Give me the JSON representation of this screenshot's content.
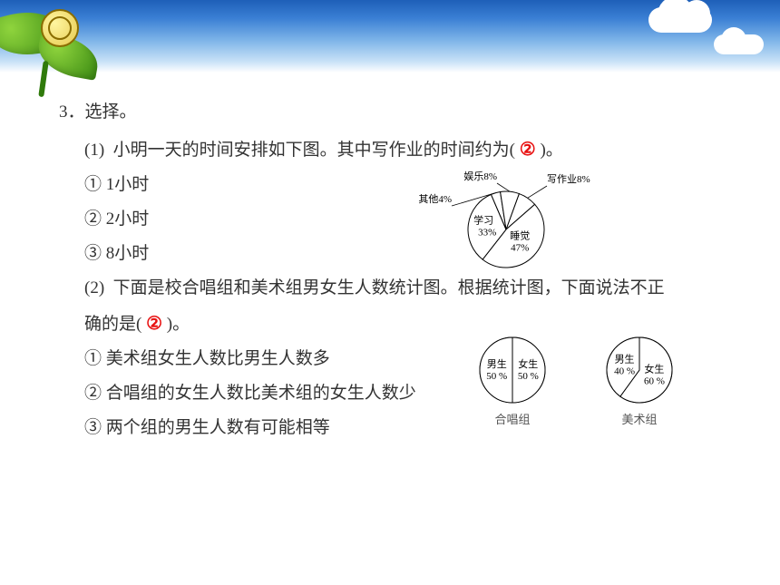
{
  "banner": {
    "sky_gradient": [
      "#1e5fb8",
      "#3a7fd4",
      "#7cb3e8",
      "#c9e2f7",
      "#ffffff"
    ],
    "leaf_colors": [
      "#8fd43d",
      "#3a8a12"
    ],
    "snail_colors": [
      "#fff6a0",
      "#e6c94f",
      "#8a6d00"
    ]
  },
  "question": {
    "number": "3．",
    "stem": "选择。",
    "answer_color": "#e81212",
    "text_color": "#333333",
    "font_size_pt": 14,
    "parts": [
      {
        "id": "(1)",
        "text": "小明一天的时间安排如下图。其中写作业的时间约为(",
        "text_after": ")。",
        "answer": "②",
        "options": [
          "①  1小时",
          "②  2小时",
          "③  8小时"
        ]
      },
      {
        "id": "(2)",
        "text_line1": "下面是校合唱组和美术组男女生人数统计图。根据统计图，下面说法不正",
        "text_line2_prefix": "确的是(",
        "text_line2_suffix": ")。",
        "answer": "②",
        "options": [
          "①  美术组女生人数比男生人数多",
          "②  合唱组的女生人数比美术组的女生人数少",
          "③  两个组的男生人数有可能相等"
        ]
      }
    ]
  },
  "figure1": {
    "type": "pie",
    "radius": 42,
    "stroke": "#000000",
    "fill": "#ffffff",
    "label_fontsize": 11,
    "slices": [
      {
        "label": "睡觉",
        "value": 47,
        "label_text": "睡觉",
        "pct_text": "47%"
      },
      {
        "label": "学习",
        "value": 33,
        "label_text": "学习",
        "pct_text": "33%"
      },
      {
        "label": "其他",
        "value": 4,
        "label_text": "其他4%",
        "pct_text": ""
      },
      {
        "label": "娱乐",
        "value": 8,
        "label_text": "娱乐8%",
        "pct_text": ""
      },
      {
        "label": "写作业",
        "value": 8,
        "label_text": "写作业8%",
        "pct_text": ""
      }
    ]
  },
  "figure2": {
    "type": "pie_pair",
    "radius": 36,
    "stroke": "#000000",
    "fill": "#ffffff",
    "label_fontsize": 11,
    "pies": [
      {
        "caption": "合唱组",
        "slices": [
          {
            "label": "男生",
            "pct": 50,
            "text1": "男生",
            "text2": "50 %"
          },
          {
            "label": "女生",
            "pct": 50,
            "text1": "女生",
            "text2": "50 %"
          }
        ]
      },
      {
        "caption": "美术组",
        "slices": [
          {
            "label": "男生",
            "pct": 40,
            "text1": "男生",
            "text2": "40 %"
          },
          {
            "label": "女生",
            "pct": 60,
            "text1": "女生",
            "text2": "60 %"
          }
        ]
      }
    ]
  }
}
